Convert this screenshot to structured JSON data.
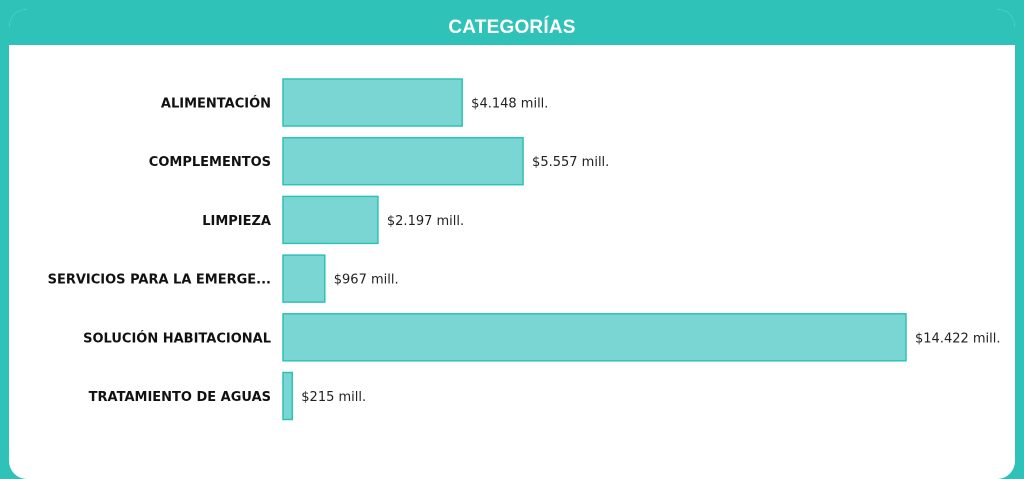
{
  "header": {
    "title": "CATEGORÍAS"
  },
  "colors": {
    "accent": "#2fc2b8",
    "bar_fill": "#79d6d3",
    "background": "#ffffff"
  },
  "chart_data": {
    "type": "bar",
    "orientation": "horizontal",
    "title": "CATEGORÍAS",
    "categories": [
      "ALIMENTACIÓN",
      "COMPLEMENTOS",
      "LIMPIEZA",
      "SERVICIOS PARA LA EMERGE...",
      "SOLUCIÓN HABITACIONAL",
      "TRATAMIENTO DE AGUAS"
    ],
    "values": [
      4148,
      5557,
      2197,
      967,
      14422,
      215
    ],
    "value_labels": [
      "$4.148 mill.",
      "$5.557 mill.",
      "$2.197 mill.",
      "$967 mill.",
      "$14.422 mill.",
      "$215 mill."
    ],
    "xlim": [
      0,
      14422
    ],
    "grid": false,
    "legend": "none"
  }
}
